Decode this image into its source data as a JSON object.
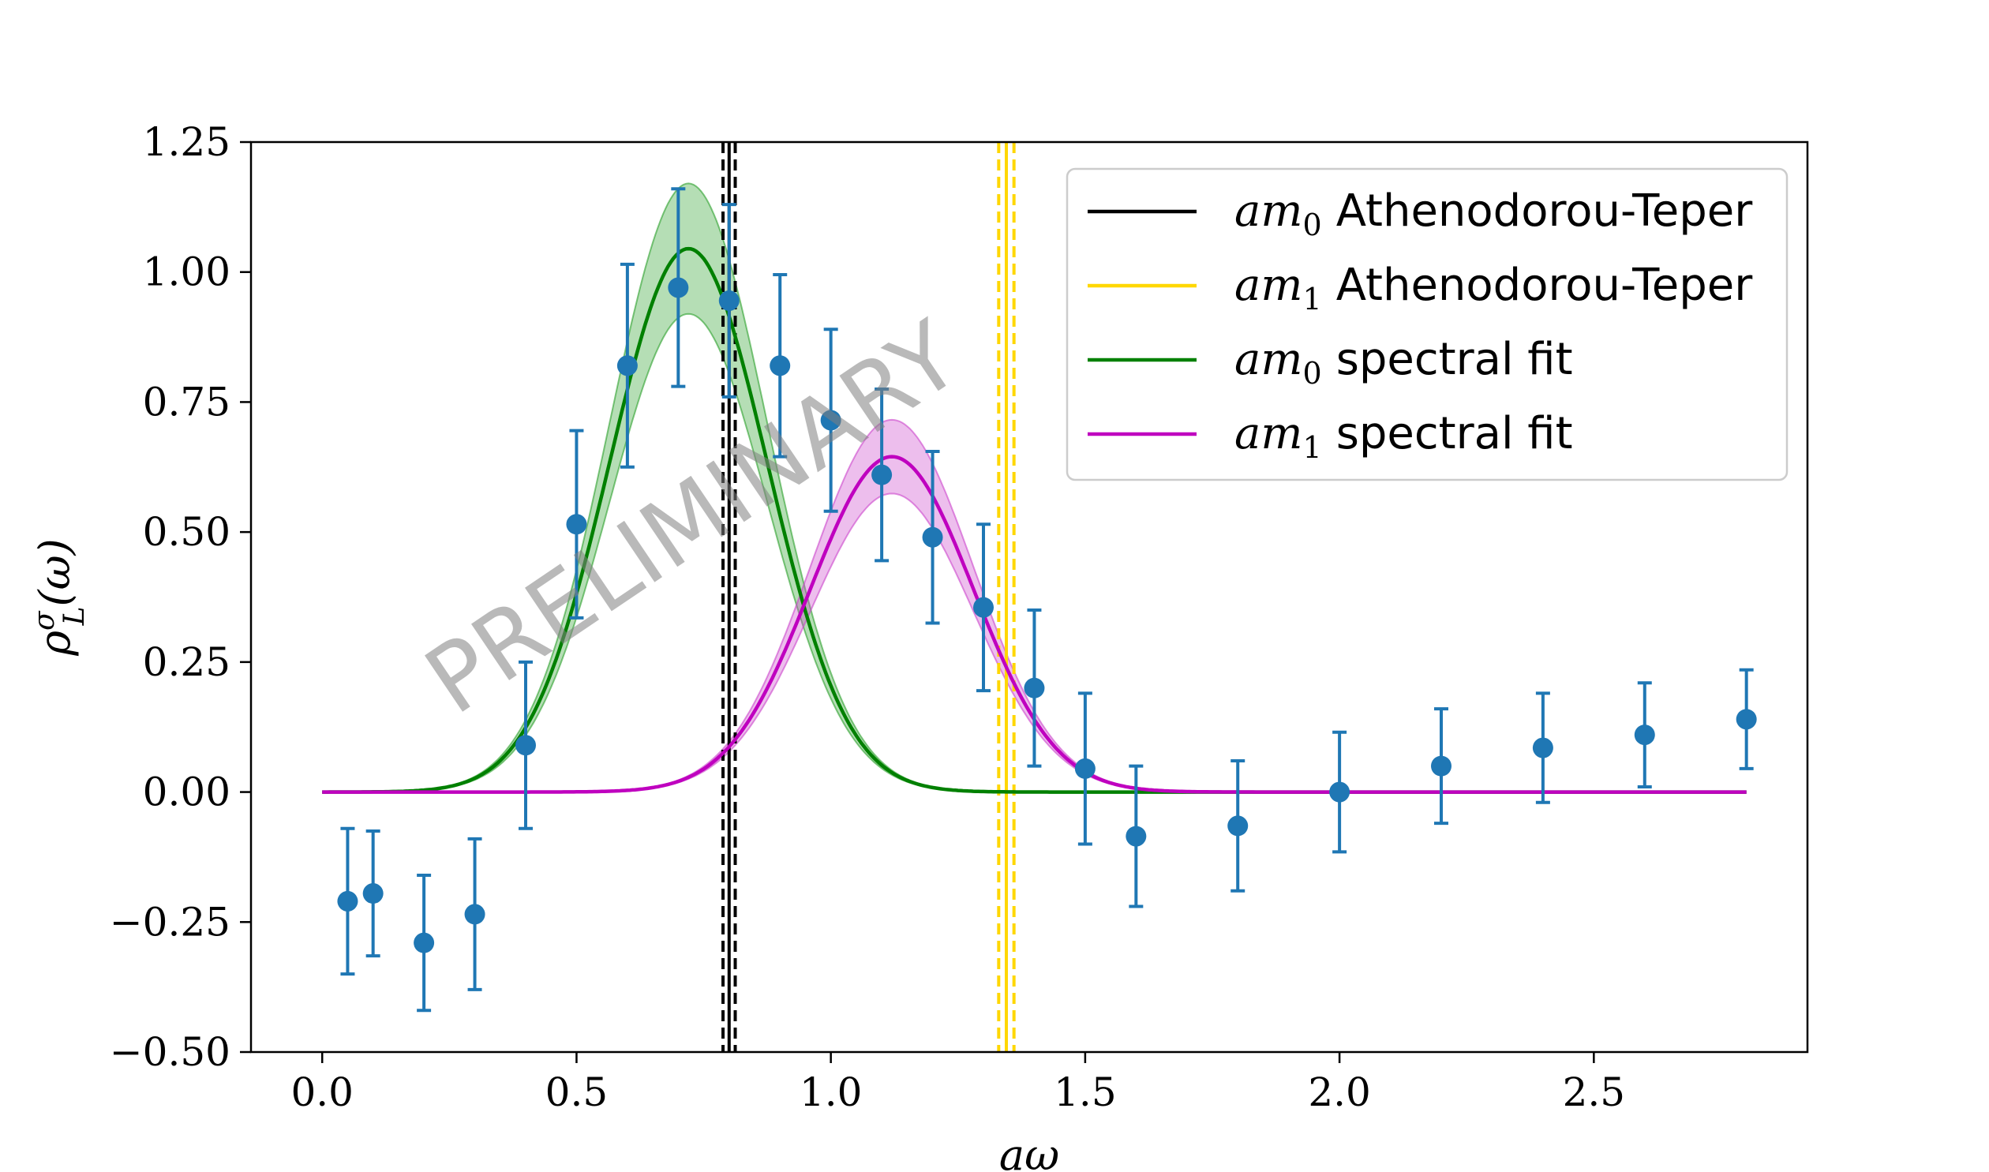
{
  "chart_data": {
    "type": "scatter",
    "xlabel": "aω",
    "ylabel": "ρ^σ_L(ω)",
    "xlim": [
      -0.14,
      2.92
    ],
    "ylim": [
      -0.5,
      1.25
    ],
    "x_ticks": [
      0.0,
      0.5,
      1.0,
      1.5,
      2.0,
      2.5
    ],
    "x_tick_labels": [
      "0.0",
      "0.5",
      "1.0",
      "1.5",
      "2.0",
      "2.5"
    ],
    "y_ticks": [
      -0.5,
      -0.25,
      0.0,
      0.25,
      0.5,
      0.75,
      1.0,
      1.25
    ],
    "y_tick_labels": [
      "−0.50",
      "−0.25",
      "0.00",
      "0.25",
      "0.50",
      "0.75",
      "1.00",
      "1.25"
    ],
    "watermark": "PRELIMINARY",
    "data_points": {
      "color": "#1f77b4",
      "x": [
        0.05,
        0.1,
        0.2,
        0.3,
        0.4,
        0.5,
        0.6,
        0.7,
        0.8,
        0.9,
        1.0,
        1.1,
        1.2,
        1.3,
        1.4,
        1.5,
        1.6,
        1.8,
        2.0,
        2.2,
        2.4,
        2.6,
        2.8
      ],
      "y": [
        -0.21,
        -0.195,
        -0.29,
        -0.235,
        0.09,
        0.515,
        0.82,
        0.97,
        0.945,
        0.82,
        0.715,
        0.61,
        0.49,
        0.355,
        0.2,
        0.045,
        -0.085,
        -0.065,
        0.0,
        0.05,
        0.085,
        0.11,
        0.14
      ],
      "err": [
        0.14,
        0.12,
        0.13,
        0.145,
        0.16,
        0.18,
        0.195,
        0.19,
        0.185,
        0.175,
        0.175,
        0.165,
        0.165,
        0.16,
        0.15,
        0.145,
        0.135,
        0.125,
        0.115,
        0.11,
        0.105,
        0.1,
        0.095
      ]
    },
    "fits": [
      {
        "name": "am0 spectral fit",
        "color": "#008000",
        "band_color": "#2ca02c",
        "amplitude": 1.045,
        "center": 0.72,
        "sigma": 0.155,
        "band": 0.12,
        "x_range": [
          0.0,
          2.8
        ]
      },
      {
        "name": "am1 spectral fit",
        "color": "#bf00bf",
        "band_color": "#cc44cc",
        "amplitude": 0.645,
        "center": 1.12,
        "sigma": 0.16,
        "band": 0.11,
        "x_range": [
          0.0,
          2.8
        ]
      }
    ],
    "vlines": [
      {
        "name": "am0 Athenodorou-Teper",
        "color": "#000000",
        "x": 0.8,
        "err": 0.012
      },
      {
        "name": "am1 Athenodorou-Teper",
        "color": "#ffd700",
        "x": 1.345,
        "err": 0.015
      }
    ],
    "legend": {
      "position": "top-right",
      "entries": [
        {
          "math": "am",
          "sub": "0",
          "label": "Athenodorou-Teper",
          "color": "#000000"
        },
        {
          "math": "am",
          "sub": "1",
          "label": "Athenodorou-Teper",
          "color": "#ffd700"
        },
        {
          "math": "am",
          "sub": "0",
          "label": "spectral fit",
          "color": "#008000"
        },
        {
          "math": "am",
          "sub": "1",
          "label": "spectral fit",
          "color": "#bf00bf"
        }
      ]
    }
  }
}
